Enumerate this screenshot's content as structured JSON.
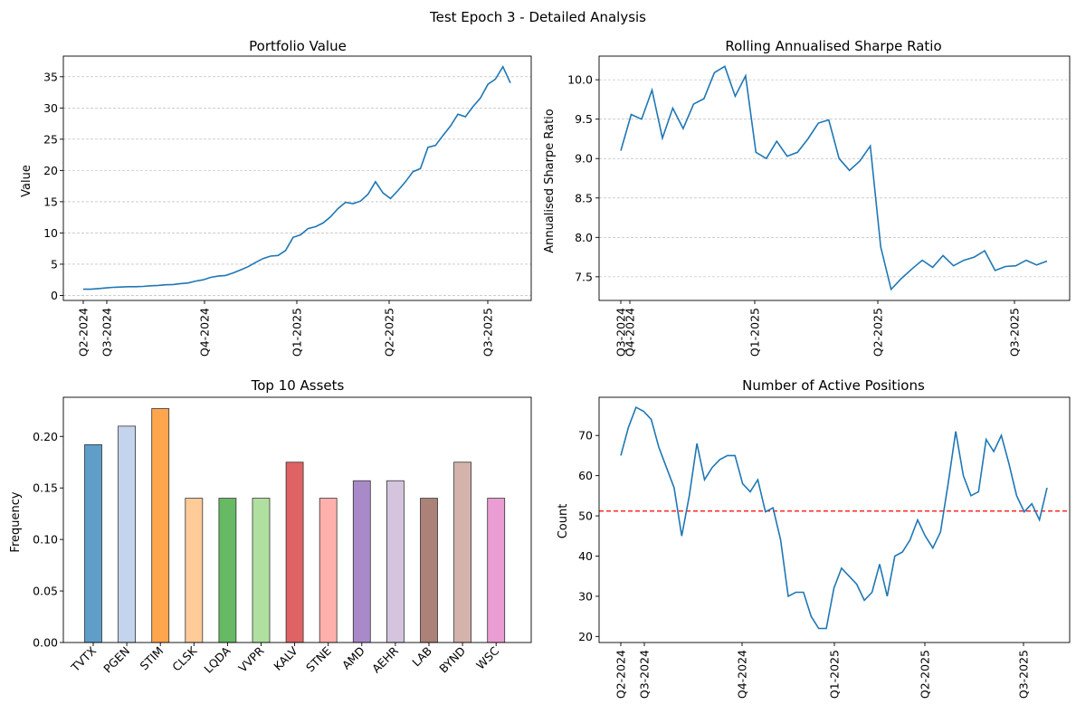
{
  "suptitle": "Test Epoch 3 - Detailed Analysis",
  "chart_data": [
    {
      "type": "line",
      "title": "Portfolio Value",
      "xlabel": "",
      "ylabel": "Value",
      "x_ticks": [
        "Q2-2024",
        "Q3-2024",
        "Q4-2024",
        "Q1-2025",
        "Q2-2025",
        "Q3-2025"
      ],
      "y_ticks": [
        0,
        5,
        10,
        15,
        20,
        25,
        30,
        35
      ],
      "ylim": [
        -0.8,
        38.3
      ],
      "grid": "horizontal dashed",
      "color": "#1f77b4",
      "series": [
        {
          "values": [
            1.0,
            1.0,
            1.1,
            1.2,
            1.3,
            1.35,
            1.4,
            1.4,
            1.45,
            1.55,
            1.6,
            1.7,
            1.75,
            1.9,
            2.0,
            2.3,
            2.5,
            2.9,
            3.1,
            3.2,
            3.6,
            4.1,
            4.6,
            5.3,
            5.9,
            6.3,
            6.4,
            7.2,
            9.3,
            9.7,
            10.7,
            11.0,
            11.6,
            12.6,
            13.9,
            14.9,
            14.7,
            15.1,
            16.2,
            18.2,
            16.4,
            15.5,
            16.8,
            18.2,
            19.8,
            20.3,
            23.7,
            24.0,
            25.6,
            27.1,
            29.0,
            28.6,
            30.2,
            31.6,
            33.8,
            34.6,
            36.6,
            34.0
          ]
        }
      ]
    },
    {
      "type": "line",
      "title": "Rolling Annualised Sharpe Ratio",
      "xlabel": "",
      "ylabel": "Annualised Sharpe Ratio",
      "x_ticks": [
        "Q3-2024",
        "Q4-2024",
        "Q1-2025",
        "Q2-2025",
        "Q3-2025"
      ],
      "y_ticks": [
        7.5,
        8.0,
        8.5,
        9.0,
        9.5,
        10.0
      ],
      "ylim": [
        7.2,
        10.3
      ],
      "grid": "horizontal dashed",
      "color": "#1f77b4",
      "series": [
        {
          "values": [
            9.1,
            9.56,
            9.5,
            9.87,
            9.26,
            9.64,
            9.38,
            9.69,
            9.76,
            10.09,
            10.17,
            9.79,
            10.05,
            9.08,
            9.0,
            9.22,
            9.03,
            9.08,
            9.25,
            9.45,
            9.49,
            9.0,
            8.85,
            8.97,
            9.16,
            7.88,
            7.34,
            7.48,
            7.6,
            7.71,
            7.62,
            7.77,
            7.64,
            7.71,
            7.75,
            7.83,
            7.58,
            7.63,
            7.64,
            7.71,
            7.65,
            7.7
          ]
        }
      ]
    },
    {
      "type": "bar",
      "title": "Top 10 Assets",
      "xlabel": "",
      "ylabel": "Frequency",
      "categories": [
        "TVTX",
        "PGEN",
        "STIM",
        "CLSK",
        "LQDA",
        "VVPR",
        "KALV",
        "STNE",
        "AMD",
        "AEHR",
        "LAB",
        "BYND",
        "WSC"
      ],
      "values": [
        0.192,
        0.21,
        0.227,
        0.14,
        0.14,
        0.14,
        0.175,
        0.14,
        0.157,
        0.157,
        0.14,
        0.175,
        0.14
      ],
      "colors": [
        "#5f9ec9",
        "#c3d4ec",
        "#ffa54d",
        "#ffcb99",
        "#67b964",
        "#b0e0a0",
        "#df6363",
        "#ffb0ad",
        "#a98ac9",
        "#d4c4de",
        "#ab8178",
        "#d4b3ac",
        "#ea9dd3"
      ],
      "y_ticks": [
        "0.00",
        "0.05",
        "0.10",
        "0.15",
        "0.20"
      ],
      "ylim": [
        0,
        0.238
      ],
      "grid": "off"
    },
    {
      "type": "line",
      "title": "Number of Active Positions",
      "xlabel": "",
      "ylabel": "Count",
      "x_ticks": [
        "Q2-2024",
        "Q3-2024",
        "Q4-2024",
        "Q1-2025",
        "Q2-2025",
        "Q3-2025"
      ],
      "y_ticks": [
        20,
        30,
        40,
        50,
        60,
        70
      ],
      "ylim": [
        18.5,
        79.5
      ],
      "grid": "off",
      "color": "#1f77b4",
      "reference_line": {
        "value": 51.2,
        "color": "#ff0000",
        "style": "dashed"
      },
      "series": [
        {
          "values": [
            65,
            72,
            77,
            76,
            74,
            67,
            62,
            57,
            45,
            55,
            68,
            59,
            62,
            64,
            65,
            65,
            58,
            56,
            59,
            51,
            52,
            44,
            30,
            31,
            31,
            25,
            22,
            22,
            32,
            37,
            35,
            33,
            29,
            31,
            38,
            30,
            40,
            41,
            44,
            49,
            45,
            42,
            46,
            58,
            71,
            60,
            55,
            56,
            69,
            66,
            70,
            63,
            55,
            51,
            53,
            49,
            57
          ]
        }
      ]
    }
  ]
}
